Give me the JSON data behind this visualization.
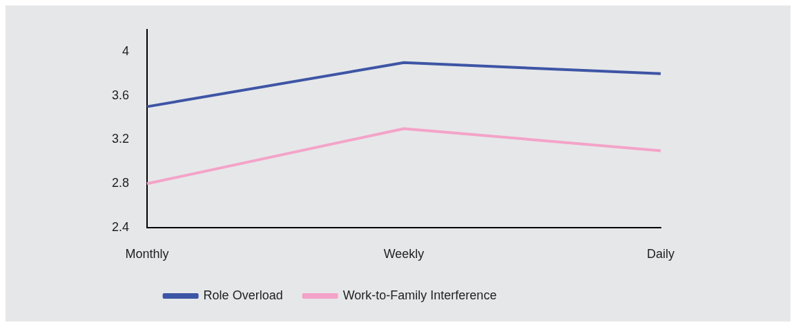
{
  "chart_data": {
    "type": "line",
    "categories": [
      "Monthly",
      "Weekly",
      "Daily"
    ],
    "series": [
      {
        "name": "Role Overload",
        "color": "#3d55a5",
        "values": [
          3.5,
          3.9,
          3.8
        ]
      },
      {
        "name": "Work-to-Family Interference",
        "color": "#f4a3c8",
        "values": [
          2.8,
          3.3,
          3.1
        ]
      }
    ],
    "ylim": [
      2.4,
      4.2
    ],
    "yticks": [
      2.4,
      2.8,
      3.2,
      3.6,
      4
    ],
    "grid": false,
    "legend": "bottom",
    "marker": "none",
    "line_style": "solid"
  }
}
